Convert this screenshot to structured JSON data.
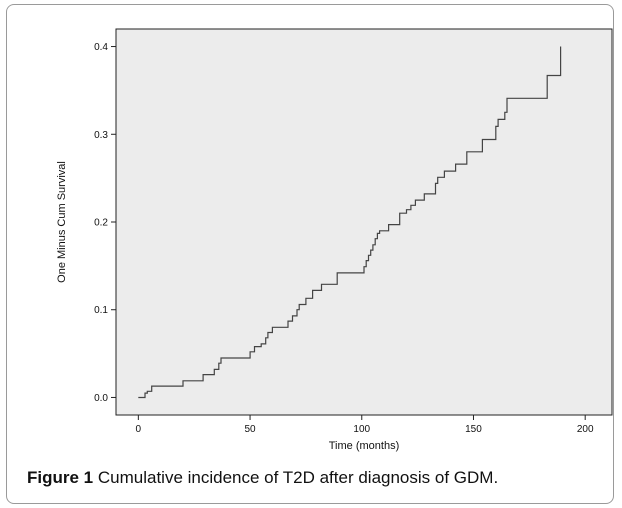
{
  "figure": {
    "caption_label": "Figure 1",
    "caption_text": "Cumulative incidence of T2D after diagnosis of GDM."
  },
  "chart_data": {
    "type": "line",
    "step": true,
    "title": "",
    "xlabel": "Time (months)",
    "ylabel": "One Minus Cum Survival",
    "xlim": [
      -10,
      212
    ],
    "ylim": [
      -0.02,
      0.42
    ],
    "xticks": [
      0,
      50,
      100,
      150,
      200
    ],
    "yticks": [
      0.0,
      0.1,
      0.2,
      0.3,
      0.4
    ],
    "ytick_labels": [
      "0.0",
      "0.1",
      "0.2",
      "0.3",
      "0.4"
    ],
    "grid": false,
    "colors": {
      "plot_bg": "#ececec",
      "line": "#444444",
      "axis": "#222222"
    },
    "series": [
      {
        "x": [
          0,
          3,
          4,
          6,
          20,
          29,
          34,
          36,
          37,
          50,
          52,
          55,
          57,
          58,
          60,
          67,
          69,
          71,
          72,
          75,
          78,
          82,
          89,
          101,
          102,
          103,
          104,
          105,
          106,
          107,
          108,
          109,
          112,
          117,
          120,
          122,
          124,
          128,
          133,
          134,
          137,
          142,
          147,
          154,
          160,
          161,
          162,
          164,
          165,
          183,
          189
        ],
        "y": [
          0.0,
          0.005,
          0.007,
          0.013,
          0.019,
          0.026,
          0.032,
          0.039,
          0.045,
          0.052,
          0.058,
          0.061,
          0.068,
          0.074,
          0.08,
          0.087,
          0.093,
          0.1,
          0.106,
          0.113,
          0.122,
          0.129,
          0.142,
          0.149,
          0.156,
          0.162,
          0.168,
          0.174,
          0.181,
          0.187,
          0.19,
          0.19,
          0.197,
          0.21,
          0.214,
          0.219,
          0.225,
          0.232,
          0.244,
          0.251,
          0.258,
          0.266,
          0.28,
          0.294,
          0.309,
          0.317,
          0.317,
          0.325,
          0.341,
          0.367,
          0.4
        ]
      }
    ]
  }
}
